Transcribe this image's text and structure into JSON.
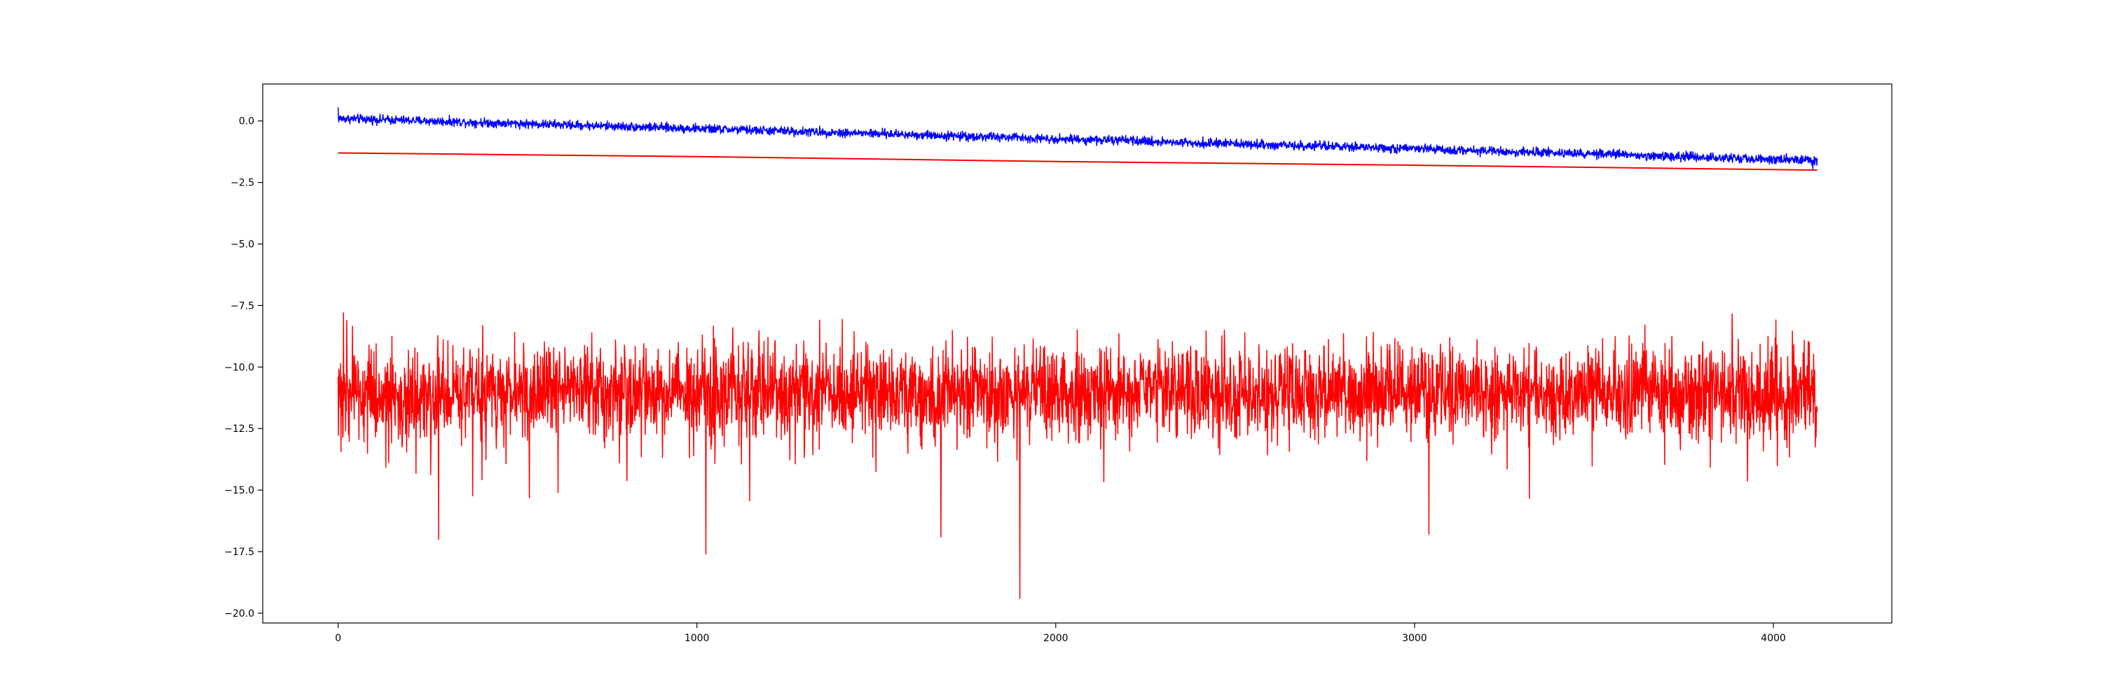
{
  "chart_data": {
    "type": "line",
    "title": "",
    "xlabel": "",
    "ylabel": "",
    "xlim": [
      -210,
      4330
    ],
    "ylim": [
      -20.4,
      1.5
    ],
    "grid": false,
    "legend": "none",
    "x_ticks": [
      {
        "value": 0,
        "label": "0"
      },
      {
        "value": 1000,
        "label": "1000"
      },
      {
        "value": 2000,
        "label": "2000"
      },
      {
        "value": 3000,
        "label": "3000"
      },
      {
        "value": 4000,
        "label": "4000"
      }
    ],
    "y_ticks": [
      {
        "value": 0,
        "label": "0.0"
      },
      {
        "value": -2.5,
        "label": "−2.5"
      },
      {
        "value": -5,
        "label": "−5.0"
      },
      {
        "value": -7.5,
        "label": "−7.5"
      },
      {
        "value": -10,
        "label": "−10.0"
      },
      {
        "value": -12.5,
        "label": "−12.5"
      },
      {
        "value": -15,
        "label": "−15.0"
      },
      {
        "value": -17.5,
        "label": "−17.5"
      },
      {
        "value": -20,
        "label": "−20.0"
      }
    ],
    "x_range": [
      0,
      4122
    ],
    "series": [
      {
        "color": "#0000ff",
        "style": "noisy",
        "point_count": 4123,
        "trend": [
          [
            0,
            0.1
          ],
          [
            4122,
            -1.6
          ]
        ],
        "noise_amplitude": 0.2,
        "peaks": [
          [
            0,
            0.55
          ],
          [
            4110,
            -1.95
          ]
        ]
      },
      {
        "color": "#ff0000",
        "style": "smooth",
        "points": [
          [
            0,
            -1.3
          ],
          [
            1000,
            -1.45
          ],
          [
            2000,
            -1.65
          ],
          [
            3000,
            -1.8
          ],
          [
            4122,
            -2.0
          ]
        ]
      },
      {
        "color": "#ff0000",
        "style": "noisy",
        "point_count": 4123,
        "mean": -11.0,
        "noise_amplitude": 1.1,
        "max": -7.8,
        "min": -19.4,
        "spikes": [
          [
            15,
            -7.8
          ],
          [
            280,
            -17.0
          ],
          [
            1025,
            -17.6
          ],
          [
            1100,
            -8.4
          ],
          [
            1680,
            -16.9
          ],
          [
            1900,
            -19.4
          ],
          [
            3040,
            -16.8
          ]
        ]
      }
    ]
  }
}
